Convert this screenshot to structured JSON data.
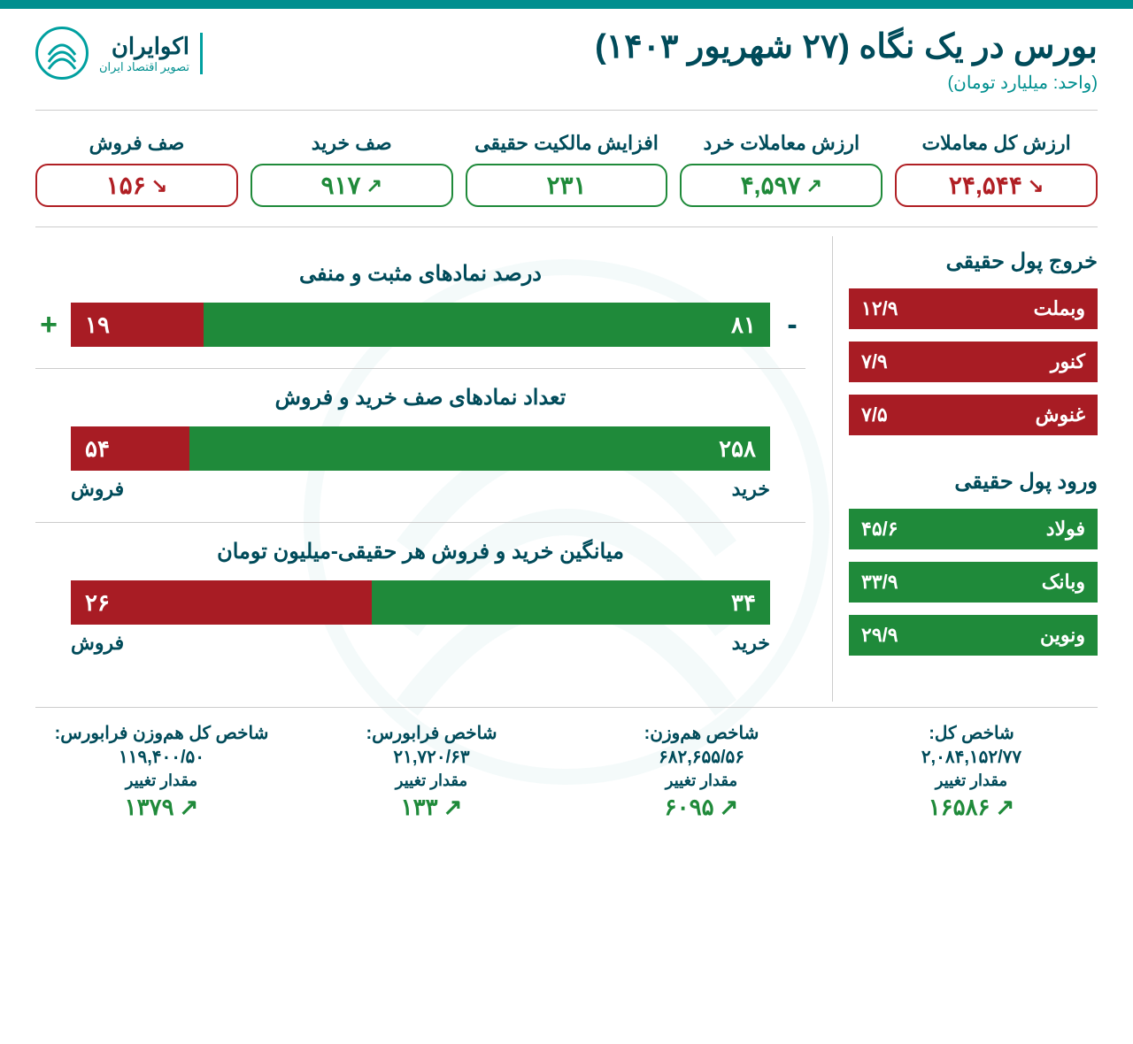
{
  "colors": {
    "teal_dark": "#004b5a",
    "teal": "#008f8f",
    "red": "#a81c24",
    "red_border": "#b01f24",
    "green": "#1f8a3a",
    "divider": "#cccccc",
    "bg": "#ffffff"
  },
  "header": {
    "title": "بورس در یک نگاه (۲۷ شهریور ۱۴۰۳)",
    "subtitle": "(واحد: میلیارد تومان)",
    "logo_name": "اکوایران",
    "logo_tag": "تصویر اقتصاد ایران"
  },
  "stats": [
    {
      "label": "ارزش کل معاملات",
      "value": "۲۴,۵۴۴",
      "dir": "down",
      "tone": "red"
    },
    {
      "label": "ارزش معاملات خرد",
      "value": "۴,۵۹۷",
      "dir": "up",
      "tone": "green"
    },
    {
      "label": "افزایش مالکیت حقیقی",
      "value": "۲۳۱",
      "dir": "none",
      "tone": "green"
    },
    {
      "label": "صف خرید",
      "value": "۹۱۷",
      "dir": "up",
      "tone": "green"
    },
    {
      "label": "صف فروش",
      "value": "۱۵۶",
      "dir": "down",
      "tone": "red"
    }
  ],
  "outflow": {
    "title": "خروج پول حقیقی",
    "items": [
      {
        "name": "وبملت",
        "value": "۱۲/۹"
      },
      {
        "name": "کنور",
        "value": "۷/۹"
      },
      {
        "name": "غنوش",
        "value": "۷/۵"
      }
    ]
  },
  "inflow": {
    "title": "ورود پول حقیقی",
    "items": [
      {
        "name": "فولاد",
        "value": "۴۵/۶"
      },
      {
        "name": "وبانک",
        "value": "۳۳/۹"
      },
      {
        "name": "ونوین",
        "value": "۲۹/۹"
      }
    ]
  },
  "charts": [
    {
      "title": "درصد نمادهای مثبت و منفی",
      "show_signs": true,
      "neg_value": "۱۹",
      "pos_value": "۸۱",
      "neg_pct": 19,
      "pos_pct": 81,
      "neg_label": "",
      "pos_label": ""
    },
    {
      "title": "تعداد نمادهای صف خرید و فروش",
      "show_signs": false,
      "neg_value": "۵۴",
      "pos_value": "۲۵۸",
      "neg_pct": 17,
      "pos_pct": 83,
      "neg_label": "فروش",
      "pos_label": "خرید"
    },
    {
      "title": "میانگین خرید و فروش هر حقیقی-میلیون تومان",
      "show_signs": false,
      "neg_value": "۲۶",
      "pos_value": "۳۴",
      "neg_pct": 43,
      "pos_pct": 57,
      "neg_label": "فروش",
      "pos_label": "خرید"
    }
  ],
  "indices": [
    {
      "label": "شاخص کل:",
      "value": "۲,۰۸۴,۱۵۲/۷۷",
      "sub": "مقدار تغییر",
      "change": "۱۶۵۸۶",
      "dir": "up"
    },
    {
      "label": "شاخص هم‌وزن:",
      "value": "۶۸۲,۶۵۵/۵۶",
      "sub": "مقدار تغییر",
      "change": "۶۰۹۵",
      "dir": "up"
    },
    {
      "label": "شاخص فرابورس:",
      "value": "۲۱,۷۲۰/۶۳",
      "sub": "مقدار تغییر",
      "change": "۱۳۳",
      "dir": "up"
    },
    {
      "label": "شاخص کل هم‌وزن فرابورس:",
      "value": "۱۱۹,۴۰۰/۵۰",
      "sub": "مقدار تغییر",
      "change": "۱۳۷۹",
      "dir": "up"
    }
  ]
}
